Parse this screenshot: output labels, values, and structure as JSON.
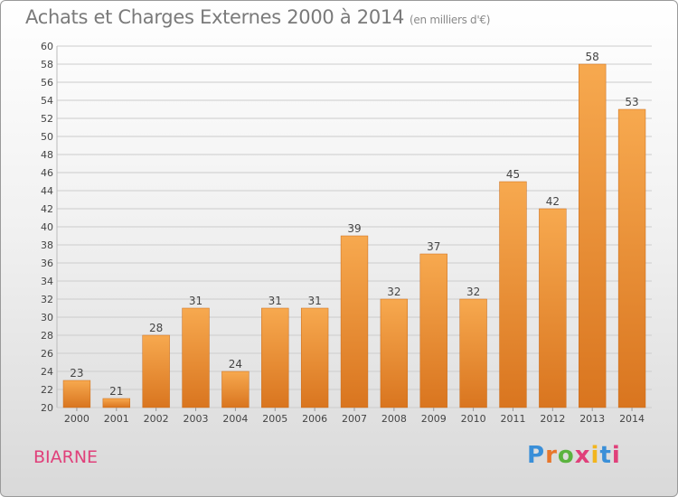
{
  "header": {
    "title": "Achats et Charges Externes 2000 à 2014",
    "subtitle": "(en milliers d'€)"
  },
  "footer": {
    "commune": "BIARNE",
    "logo": "Proxiti",
    "logo_colors": [
      "#3a8fd8",
      "#e8762b",
      "#5bb33f",
      "#e0407a",
      "#f2b51d",
      "#3a8fd8",
      "#e0407a"
    ]
  },
  "colors": {
    "bar_light": "#f7a94f",
    "bar_dark": "#d9751f",
    "bar_stroke": "#c96a18",
    "grid": "#cccccc",
    "axis_text": "#444444",
    "commune": "#e0407a"
  },
  "chart_data": {
    "type": "bar",
    "categories": [
      "2000",
      "2001",
      "2002",
      "2003",
      "2004",
      "2005",
      "2006",
      "2007",
      "2008",
      "2009",
      "2010",
      "2011",
      "2012",
      "2013",
      "2014"
    ],
    "values": [
      23,
      21,
      28,
      31,
      24,
      31,
      31,
      39,
      32,
      37,
      32,
      45,
      42,
      58,
      53
    ],
    "ylim": [
      20,
      60
    ],
    "ytick_step": 2,
    "grid": true,
    "data_labels": true
  }
}
